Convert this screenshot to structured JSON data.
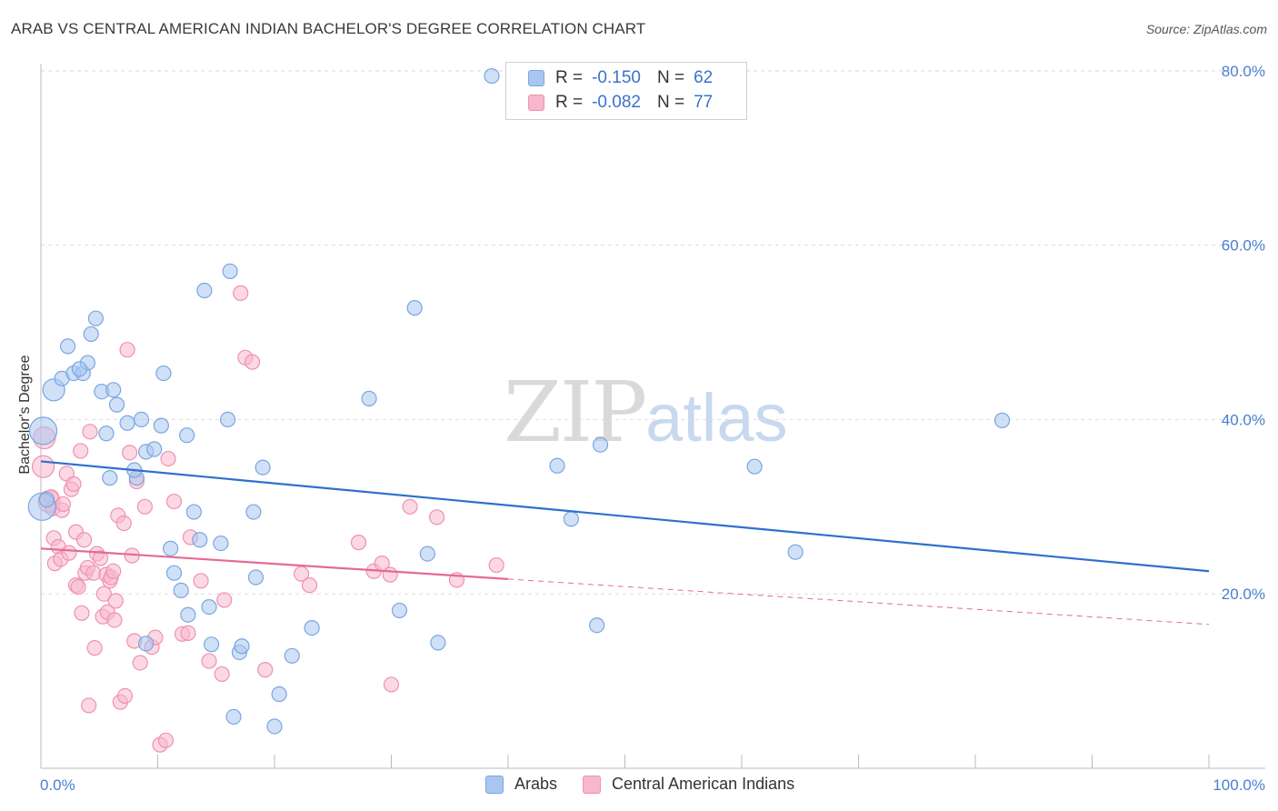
{
  "header": {
    "title": "ARAB VS CENTRAL AMERICAN INDIAN BACHELOR'S DEGREE CORRELATION CHART",
    "source": "Source: ZipAtlas.com"
  },
  "watermark": {
    "zip": "ZIP",
    "atlas": "atlas"
  },
  "legend": {
    "r_label": "R =",
    "n_label": "N =",
    "rows": [
      {
        "r": "-0.150",
        "n": "62",
        "color": "#a9c6f0"
      },
      {
        "r": "-0.082",
        "n": "77",
        "color": "#f7b8cc"
      }
    ]
  },
  "bottom_legend": [
    "Arabs",
    "Central American Indians"
  ],
  "colors": {
    "arabs_fill": "#a9c6f0",
    "arabs_stroke": "#7aa6e0",
    "arabs_line": "#2f6fd0",
    "cai_fill": "#f7b8cc",
    "cai_stroke": "#ee92b0",
    "cai_line": "#e46a95",
    "axis_text": "#4a7fd0",
    "grid": "#dddddd"
  },
  "chart_data": {
    "type": "scatter",
    "title": "ARAB VS CENTRAL AMERICAN INDIAN BACHELOR'S DEGREE CORRELATION CHART",
    "xlabel": "",
    "ylabel": "Bachelor's Degree",
    "xlim": [
      0,
      100
    ],
    "ylim": [
      0,
      82
    ],
    "x_tick_labels": [
      "0.0%",
      "100.0%"
    ],
    "y_ticks": [
      20,
      40,
      60,
      80
    ],
    "y_tick_labels": [
      "20.0%",
      "40.0%",
      "60.0%",
      "80.0%"
    ],
    "grid": true,
    "legend_position": "top-center",
    "series": [
      {
        "name": "Arabs",
        "R": -0.15,
        "N": 62,
        "trend": {
          "x": [
            0,
            100
          ],
          "y": [
            35.2,
            22.6
          ]
        },
        "points": [
          [
            0.2,
            38.7,
            3
          ],
          [
            0.1,
            30.0,
            3
          ],
          [
            1.1,
            43.4,
            2
          ],
          [
            1.8,
            44.7,
            1
          ],
          [
            2.3,
            48.4,
            1
          ],
          [
            2.8,
            45.3,
            1
          ],
          [
            3.6,
            45.3,
            1
          ],
          [
            4.0,
            46.5,
            1
          ],
          [
            4.3,
            49.8,
            1
          ],
          [
            4.7,
            51.6,
            1
          ],
          [
            5.2,
            43.2,
            1
          ],
          [
            5.6,
            38.4,
            1
          ],
          [
            6.2,
            43.4,
            1
          ],
          [
            6.5,
            41.7,
            1
          ],
          [
            5.9,
            33.3,
            1
          ],
          [
            7.4,
            39.6,
            1
          ],
          [
            8.2,
            33.3,
            1
          ],
          [
            8.0,
            34.2,
            1
          ],
          [
            8.6,
            40.0,
            1
          ],
          [
            9.0,
            36.3,
            1
          ],
          [
            9.7,
            36.6,
            1
          ],
          [
            10.3,
            39.3,
            1
          ],
          [
            10.5,
            45.3,
            1
          ],
          [
            11.1,
            25.2,
            1
          ],
          [
            11.4,
            22.4,
            1
          ],
          [
            12.0,
            20.4,
            1
          ],
          [
            12.5,
            38.2,
            1
          ],
          [
            12.6,
            17.6,
            1
          ],
          [
            13.1,
            29.4,
            1
          ],
          [
            13.6,
            26.2,
            1
          ],
          [
            14.0,
            54.8,
            1
          ],
          [
            14.4,
            18.5,
            1
          ],
          [
            14.6,
            14.2,
            1
          ],
          [
            15.4,
            25.8,
            1
          ],
          [
            16.0,
            40.0,
            1
          ],
          [
            16.2,
            57.0,
            1
          ],
          [
            16.5,
            5.9,
            1
          ],
          [
            17.0,
            13.3,
            1
          ],
          [
            17.2,
            14.0,
            1
          ],
          [
            18.2,
            29.4,
            1
          ],
          [
            18.4,
            21.9,
            1
          ],
          [
            19.0,
            34.5,
            1
          ],
          [
            20.0,
            4.8,
            1
          ],
          [
            20.4,
            8.5,
            1
          ],
          [
            21.5,
            12.9,
            1
          ],
          [
            23.2,
            16.1,
            1
          ],
          [
            28.1,
            42.4,
            1
          ],
          [
            30.7,
            18.1,
            1
          ],
          [
            32.0,
            52.8,
            1
          ],
          [
            33.1,
            24.6,
            1
          ],
          [
            34.0,
            14.4,
            1
          ],
          [
            38.6,
            79.4,
            1
          ],
          [
            44.2,
            34.7,
            1
          ],
          [
            45.4,
            28.6,
            1
          ],
          [
            47.6,
            16.4,
            1
          ],
          [
            47.9,
            37.1,
            1
          ],
          [
            61.1,
            34.6,
            1
          ],
          [
            64.6,
            24.8,
            1
          ],
          [
            82.3,
            39.9,
            1
          ],
          [
            0.5,
            30.8,
            1
          ],
          [
            3.3,
            45.8,
            1
          ],
          [
            9.0,
            14.3,
            1
          ]
        ]
      },
      {
        "name": "Central American Indians",
        "R": -0.082,
        "N": 77,
        "trend": {
          "x": [
            0,
            40
          ],
          "y": [
            25.2,
            21.7
          ]
        },
        "trend_extended": {
          "x": [
            40,
            100
          ],
          "y": [
            21.7,
            16.5
          ]
        },
        "points": [
          [
            0.2,
            34.6,
            2
          ],
          [
            0.3,
            37.9,
            2
          ],
          [
            0.7,
            30.6,
            2
          ],
          [
            0.9,
            31.1,
            1
          ],
          [
            1.0,
            29.8,
            1
          ],
          [
            1.1,
            26.4,
            1
          ],
          [
            1.2,
            23.5,
            1
          ],
          [
            1.5,
            25.4,
            1
          ],
          [
            1.7,
            24.0,
            1
          ],
          [
            1.8,
            29.6,
            1
          ],
          [
            1.9,
            30.3,
            1
          ],
          [
            2.2,
            33.8,
            1
          ],
          [
            2.4,
            24.7,
            1
          ],
          [
            2.6,
            32.0,
            1
          ],
          [
            2.8,
            32.6,
            1
          ],
          [
            3.0,
            21.0,
            1
          ],
          [
            3.0,
            27.1,
            1
          ],
          [
            3.2,
            20.8,
            1
          ],
          [
            3.4,
            36.4,
            1
          ],
          [
            3.5,
            17.8,
            1
          ],
          [
            3.7,
            26.2,
            1
          ],
          [
            3.8,
            22.4,
            1
          ],
          [
            4.0,
            23.0,
            1
          ],
          [
            4.1,
            7.2,
            1
          ],
          [
            4.2,
            38.6,
            1
          ],
          [
            4.5,
            22.4,
            1
          ],
          [
            4.6,
            13.8,
            1
          ],
          [
            4.8,
            24.6,
            1
          ],
          [
            5.1,
            24.1,
            1
          ],
          [
            5.3,
            17.4,
            1
          ],
          [
            5.4,
            20.0,
            1
          ],
          [
            5.6,
            22.2,
            1
          ],
          [
            5.7,
            17.9,
            1
          ],
          [
            5.9,
            21.5,
            1
          ],
          [
            6.0,
            21.9,
            1
          ],
          [
            6.2,
            22.6,
            1
          ],
          [
            6.3,
            17.0,
            1
          ],
          [
            6.4,
            19.2,
            1
          ],
          [
            6.6,
            29.0,
            1
          ],
          [
            6.8,
            7.6,
            1
          ],
          [
            7.1,
            28.1,
            1
          ],
          [
            7.2,
            8.3,
            1
          ],
          [
            7.4,
            48.0,
            1
          ],
          [
            7.6,
            36.2,
            1
          ],
          [
            7.8,
            24.4,
            1
          ],
          [
            8.0,
            14.6,
            1
          ],
          [
            8.2,
            32.9,
            1
          ],
          [
            8.5,
            12.1,
            1
          ],
          [
            8.9,
            30.0,
            1
          ],
          [
            9.5,
            13.9,
            1
          ],
          [
            9.8,
            15.0,
            1
          ],
          [
            10.2,
            2.7,
            1
          ],
          [
            10.7,
            3.2,
            1
          ],
          [
            10.9,
            35.5,
            1
          ],
          [
            11.4,
            30.6,
            1
          ],
          [
            12.1,
            15.4,
            1
          ],
          [
            12.6,
            15.5,
            1
          ],
          [
            12.8,
            26.5,
            1
          ],
          [
            13.7,
            21.5,
            1
          ],
          [
            14.4,
            12.3,
            1
          ],
          [
            15.5,
            10.8,
            1
          ],
          [
            15.7,
            19.3,
            1
          ],
          [
            17.1,
            54.5,
            1
          ],
          [
            17.5,
            47.1,
            1
          ],
          [
            18.1,
            46.6,
            1
          ],
          [
            19.2,
            11.3,
            1
          ],
          [
            22.3,
            22.3,
            1
          ],
          [
            23.0,
            21.0,
            1
          ],
          [
            27.2,
            25.9,
            1
          ],
          [
            28.5,
            22.6,
            1
          ],
          [
            29.2,
            23.5,
            1
          ],
          [
            29.9,
            22.2,
            1
          ],
          [
            30.0,
            9.6,
            1
          ],
          [
            31.6,
            30.0,
            1
          ],
          [
            33.9,
            28.8,
            1
          ],
          [
            35.6,
            21.6,
            1
          ],
          [
            39.0,
            23.3,
            1
          ]
        ]
      }
    ]
  }
}
